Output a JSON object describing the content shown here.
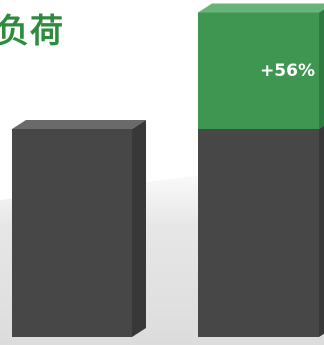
{
  "colors": {
    "title": "#2e8b3e",
    "baseline_front": "#474747",
    "baseline_side": "#383838",
    "baseline_top": "#6a6a6a",
    "increase_front": "#3e9650",
    "increase_side": "#2f7a40",
    "increase_top": "#67b478",
    "label": "#ffffff"
  },
  "chart_data": {
    "type": "bar",
    "title": "负荷",
    "categories": [
      "",
      ""
    ],
    "series": [
      {
        "values": [
          100,
          100
        ]
      },
      {
        "values": [
          0,
          56
        ]
      }
    ],
    "annotations": [
      {
        "category_index": 1,
        "text": "+56%"
      }
    ],
    "ylim": [
      0,
      170
    ],
    "grid": false,
    "legend": "none"
  }
}
